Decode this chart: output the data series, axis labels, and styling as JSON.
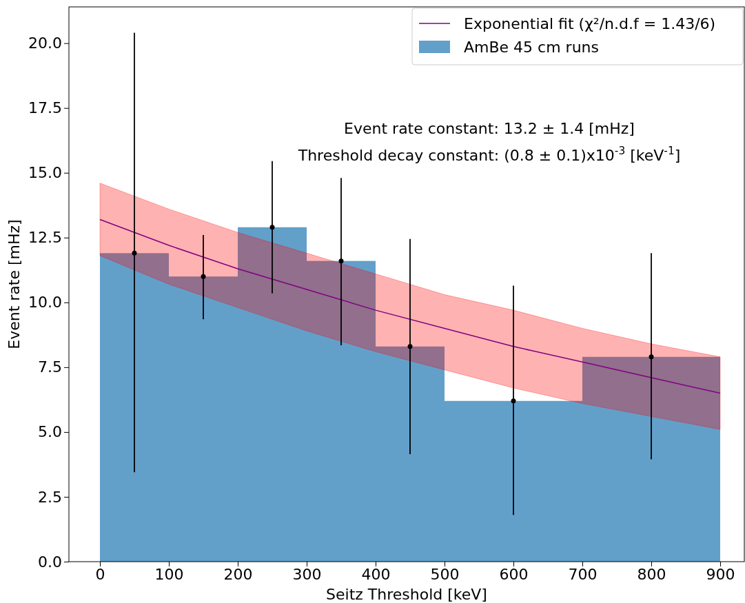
{
  "chart_data": {
    "type": "histogram",
    "xlabel": "Seitz Threshold [keV]",
    "ylabel": "Event rate [mHz]",
    "annotations": [
      "Event rate constant: 13.2 ± 1.4 [mHz]",
      "Threshold decay constant: (0.8 ± 0.1)x10$^{-3}$ [keV$^{-1}$]"
    ],
    "xlim": [
      -45,
      935
    ],
    "ylim": [
      0,
      21.4
    ],
    "xticks": [
      0,
      100,
      200,
      300,
      400,
      500,
      600,
      700,
      800,
      900
    ],
    "yticks": [
      {
        "value": 0,
        "label": "0.0"
      },
      {
        "value": 2.5,
        "label": "2.5"
      },
      {
        "value": 5,
        "label": "5.0"
      },
      {
        "value": 7.5,
        "label": "7.5"
      },
      {
        "value": 10,
        "label": "10.0"
      },
      {
        "value": 12.5,
        "label": "12.5"
      },
      {
        "value": 15,
        "label": "15.0"
      },
      {
        "value": 17.5,
        "label": "17.5"
      },
      {
        "value": 20,
        "label": "20.0"
      }
    ],
    "legend": "top right",
    "series": [
      {
        "type": "line",
        "name": "Exponential fit (χ²/n.d.f = 1.43/6)",
        "color": "#800080",
        "x": [
          0,
          100,
          200,
          300,
          400,
          500,
          600,
          700,
          800,
          900
        ],
        "values": [
          13.2,
          12.2,
          11.3,
          10.5,
          9.7,
          9.0,
          8.3,
          7.7,
          7.1,
          6.5
        ],
        "lower": [
          11.8,
          10.7,
          9.8,
          8.9,
          8.1,
          7.4,
          6.7,
          6.1,
          5.6,
          5.1
        ],
        "upper": [
          14.6,
          13.6,
          12.7,
          11.9,
          11.1,
          10.3,
          9.7,
          9.0,
          8.4,
          7.9
        ]
      },
      {
        "name": "AmBe 45 cm runs",
        "color": "#1f77b4",
        "bins": [
          0,
          100,
          200,
          300,
          400,
          500,
          700,
          900
        ],
        "values": [
          11.9,
          11.0,
          12.9,
          11.6,
          8.3,
          6.2,
          7.9
        ]
      },
      {
        "type": "scatter",
        "color": "#000000",
        "x": [
          50,
          150,
          250,
          350,
          450,
          600,
          800
        ],
        "values": [
          11.9,
          11.0,
          12.9,
          11.6,
          8.3,
          6.2,
          7.9
        ],
        "errors": [
          [
            3.45,
            20.4
          ],
          [
            9.35,
            12.6
          ],
          [
            10.35,
            15.45
          ],
          [
            8.35,
            14.8
          ],
          [
            4.15,
            12.45
          ],
          [
            1.8,
            10.65
          ],
          [
            3.95,
            11.9
          ]
        ]
      }
    ]
  }
}
